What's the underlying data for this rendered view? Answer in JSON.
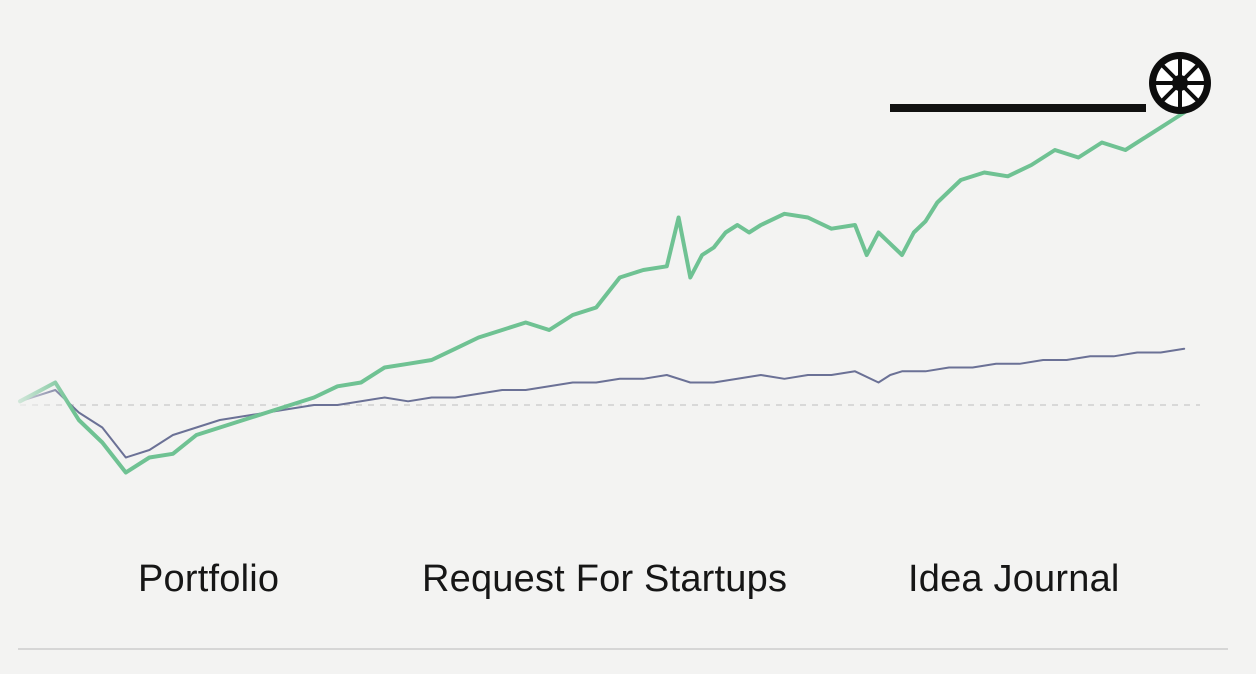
{
  "nav": {
    "tabs": [
      {
        "label": "Portfolio",
        "active": false
      },
      {
        "label": "Request For Startups",
        "active": false
      },
      {
        "label": "Idea Journal",
        "active": true
      }
    ]
  },
  "colors": {
    "background": "#f3f3f2",
    "portfolio_line": "#6fc293",
    "benchmark_line": "#6b7196",
    "baseline": "#cfcfcf",
    "active_tab": "#111111"
  },
  "icons": {
    "logo": "round-logo-icon"
  },
  "chart_data": {
    "type": "line",
    "grid": false,
    "legend": "none",
    "baseline_y": 0,
    "ylim": [
      -1.0,
      4.2
    ],
    "xlim": [
      0,
      100
    ],
    "series": [
      {
        "color": "#6fc293",
        "x": [
          0,
          3,
          5,
          7,
          9,
          11,
          13,
          15,
          17,
          19,
          21,
          23,
          25,
          27,
          29,
          31,
          33,
          35,
          37,
          39,
          41,
          43,
          45,
          47,
          49,
          51,
          53,
          55,
          56,
          57,
          58,
          59,
          60,
          61,
          62,
          63,
          65,
          67,
          69,
          71,
          72,
          73,
          75,
          76,
          77,
          78,
          80,
          82,
          84,
          86,
          88,
          90,
          92,
          94,
          96,
          98,
          99
        ],
        "values": [
          0.05,
          0.3,
          -0.2,
          -0.5,
          -0.9,
          -0.7,
          -0.65,
          -0.4,
          -0.3,
          -0.2,
          -0.1,
          0.0,
          0.1,
          0.25,
          0.3,
          0.5,
          0.55,
          0.6,
          0.75,
          0.9,
          1.0,
          1.1,
          1.0,
          1.2,
          1.3,
          1.7,
          1.8,
          1.85,
          2.5,
          1.7,
          2.0,
          2.1,
          2.3,
          2.4,
          2.3,
          2.4,
          2.55,
          2.5,
          2.35,
          2.4,
          2.0,
          2.3,
          2.0,
          2.3,
          2.45,
          2.7,
          3.0,
          3.1,
          3.05,
          3.2,
          3.4,
          3.3,
          3.5,
          3.4,
          3.6,
          3.8,
          3.9
        ]
      },
      {
        "color": "#6b7196",
        "x": [
          0,
          3,
          5,
          7,
          9,
          11,
          13,
          15,
          17,
          19,
          21,
          23,
          25,
          27,
          29,
          31,
          33,
          35,
          37,
          39,
          41,
          43,
          45,
          47,
          49,
          51,
          53,
          55,
          57,
          59,
          61,
          63,
          65,
          67,
          69,
          71,
          73,
          74,
          75,
          77,
          79,
          81,
          83,
          85,
          87,
          89,
          91,
          93,
          95,
          97,
          99
        ],
        "values": [
          0.05,
          0.2,
          -0.1,
          -0.3,
          -0.7,
          -0.6,
          -0.4,
          -0.3,
          -0.2,
          -0.15,
          -0.1,
          -0.05,
          0.0,
          0.0,
          0.05,
          0.1,
          0.05,
          0.1,
          0.1,
          0.15,
          0.2,
          0.2,
          0.25,
          0.3,
          0.3,
          0.35,
          0.35,
          0.4,
          0.3,
          0.3,
          0.35,
          0.4,
          0.35,
          0.4,
          0.4,
          0.45,
          0.3,
          0.4,
          0.45,
          0.45,
          0.5,
          0.5,
          0.55,
          0.55,
          0.6,
          0.6,
          0.65,
          0.65,
          0.7,
          0.7,
          0.75
        ]
      }
    ]
  }
}
